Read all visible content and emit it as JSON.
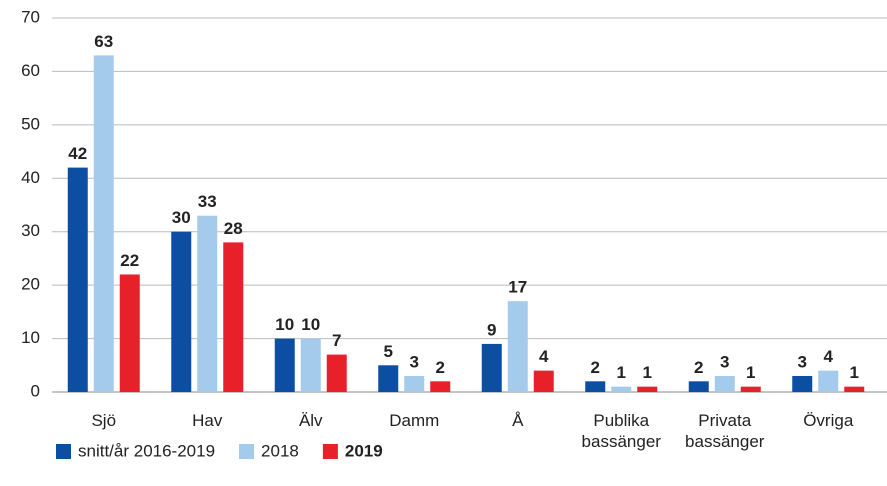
{
  "chart_data": {
    "type": "bar",
    "categories": [
      "Sjö",
      "Hav",
      "Älv",
      "Damm",
      "Å",
      "Publika bassänger",
      "Privata bassänger",
      "Övriga"
    ],
    "series": [
      {
        "name": "snitt/år 2016-2019",
        "color": "#0b4ea2",
        "values": [
          42,
          30,
          10,
          5,
          9,
          2,
          2,
          3
        ]
      },
      {
        "name": "2018",
        "color": "#a4cbeb",
        "values": [
          63,
          33,
          10,
          3,
          17,
          1,
          3,
          4
        ]
      },
      {
        "name": "2019",
        "color": "#e8202a",
        "bold": true,
        "values": [
          22,
          28,
          7,
          2,
          4,
          1,
          1,
          1
        ]
      }
    ],
    "ylim": [
      0,
      70
    ],
    "yticks": [
      0,
      10,
      20,
      30,
      40,
      50,
      60,
      70
    ],
    "grid": true,
    "legend": "bottom"
  }
}
